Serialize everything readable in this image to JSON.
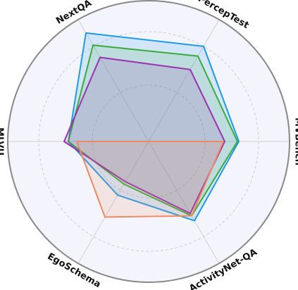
{
  "chart_data": {
    "type": "radar",
    "categories": [
      "NextQA",
      "PercepTest",
      "MVBench",
      "ActivityNet-QA",
      "EgoSchema",
      "MLVU"
    ],
    "ylim": [
      0,
      1
    ],
    "series": [
      {
        "color": "#1e9be8",
        "values": [
          0.89,
          0.78,
          0.64,
          0.65,
          0.44,
          0.57
        ]
      },
      {
        "color": "#3aab3a",
        "values": [
          0.79,
          0.7,
          0.63,
          0.61,
          0.35,
          0.57
        ]
      },
      {
        "color": "#9b30b0",
        "values": [
          0.69,
          0.59,
          0.54,
          0.59,
          0.33,
          0.6
        ]
      },
      {
        "color": "#f08a60",
        "values": [
          0,
          0,
          0.53,
          0.61,
          0.62,
          0.51
        ]
      }
    ]
  }
}
